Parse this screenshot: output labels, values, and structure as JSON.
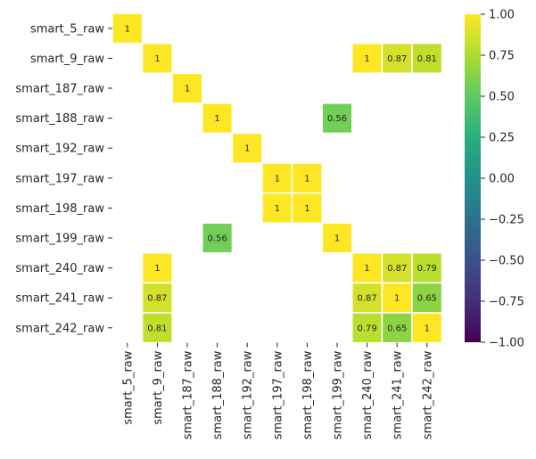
{
  "chart_data": {
    "type": "heatmap",
    "title": "",
    "xlabel": "",
    "ylabel": "",
    "labels": [
      "smart_5_raw",
      "smart_9_raw",
      "smart_187_raw",
      "smart_188_raw",
      "smart_192_raw",
      "smart_197_raw",
      "smart_198_raw",
      "smart_199_raw",
      "smart_240_raw",
      "smart_241_raw",
      "smart_242_raw"
    ],
    "matrix": [
      [
        1,
        null,
        null,
        null,
        null,
        null,
        null,
        null,
        null,
        null,
        null
      ],
      [
        null,
        1,
        null,
        null,
        null,
        null,
        null,
        null,
        1,
        0.87,
        0.81
      ],
      [
        null,
        null,
        1,
        null,
        null,
        null,
        null,
        null,
        null,
        null,
        null
      ],
      [
        null,
        null,
        null,
        1,
        null,
        null,
        null,
        0.56,
        null,
        null,
        null
      ],
      [
        null,
        null,
        null,
        null,
        1,
        null,
        null,
        null,
        null,
        null,
        null
      ],
      [
        null,
        null,
        null,
        null,
        null,
        1,
        1,
        null,
        null,
        null,
        null
      ],
      [
        null,
        null,
        null,
        null,
        null,
        1,
        1,
        null,
        null,
        null,
        null
      ],
      [
        null,
        null,
        null,
        0.56,
        null,
        null,
        null,
        1,
        null,
        null,
        null
      ],
      [
        null,
        1,
        null,
        null,
        null,
        null,
        null,
        null,
        1,
        0.87,
        0.79
      ],
      [
        null,
        0.87,
        null,
        null,
        null,
        null,
        null,
        null,
        0.87,
        1,
        0.65
      ],
      [
        null,
        0.81,
        null,
        null,
        null,
        null,
        null,
        null,
        0.79,
        0.65,
        1
      ]
    ],
    "colormap": "viridis",
    "vmin": -1,
    "vmax": 1,
    "colorbar_ticks": [
      1.0,
      0.75,
      0.5,
      0.25,
      0.0,
      -0.25,
      -0.5,
      -0.75,
      -1.0
    ],
    "colorbar_tick_labels": [
      "1.00",
      "0.75",
      "0.50",
      "0.25",
      "0.00",
      "−0.25",
      "−0.50",
      "−0.75",
      "−1.00"
    ],
    "annotations": true,
    "grid": false
  }
}
